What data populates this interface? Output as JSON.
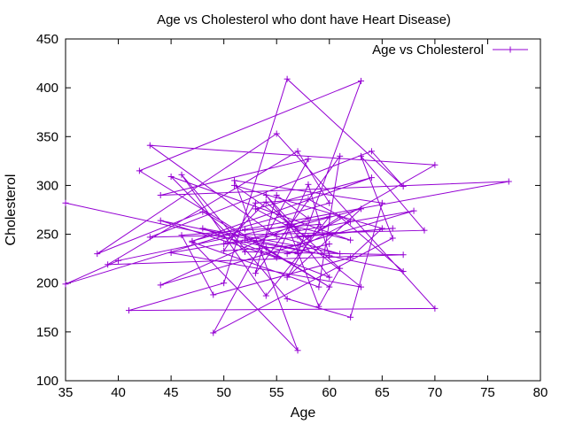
{
  "chart_data": {
    "type": "line",
    "title": "Age vs Cholesterol who dont have Heart Disease)",
    "xlabel": "Age",
    "ylabel": "Cholesterol",
    "xlim": [
      35,
      80
    ],
    "ylim": [
      100,
      450
    ],
    "x_ticks": [
      35,
      40,
      45,
      50,
      55,
      60,
      65,
      70,
      75,
      80
    ],
    "y_ticks": [
      100,
      150,
      200,
      250,
      300,
      350,
      400,
      450
    ],
    "grid": false,
    "legend_position": "top-right",
    "series": [
      {
        "name": "Age vs Cholesterol",
        "color": "#9400d3",
        "marker": "plus",
        "x": [
          35,
          57,
          63,
          42,
          60,
          48,
          38,
          55,
          70,
          41,
          50,
          56,
          67,
          64,
          43,
          69,
          63,
          66,
          49,
          58,
          44,
          77,
          52,
          35,
          40,
          60,
          54,
          46,
          56,
          62,
          65,
          51,
          57,
          47,
          59,
          61,
          53,
          55,
          58,
          44,
          68,
          45,
          63,
          57,
          66,
          50,
          54,
          61,
          59,
          56,
          62,
          45,
          52,
          67,
          39,
          57,
          60,
          47,
          64,
          53,
          58,
          70,
          43,
          55,
          61,
          48,
          60,
          54,
          57,
          51,
          65,
          62,
          49,
          46,
          59,
          56,
          63,
          52,
          60,
          58,
          55,
          44,
          67,
          61,
          57,
          54,
          50,
          53,
          58,
          62,
          56,
          60
        ],
        "y": [
          282,
          230,
          407,
          315,
          196,
          273,
          230,
          353,
          174,
          172,
          200,
          409,
          299,
          335,
          247,
          254,
          330,
          246,
          149,
          327,
          290,
          304,
          255,
          199,
          223,
          268,
          187,
          311,
          184,
          165,
          282,
          305,
          131,
          242,
          196,
          330,
          210,
          290,
          266,
          198,
          274,
          231,
          196,
          248,
          256,
          240,
          283,
          215,
          176,
          260,
          244,
          309,
          232,
          229,
          219,
          335,
          282,
          243,
          308,
          276,
          247,
          321,
          341,
          248,
          230,
          256,
          206,
          290,
          255,
          300,
          256,
          226,
          188,
          249,
          260,
          206,
          276,
          244,
          228,
          301,
          226,
          264,
          212,
          268,
          239,
          236,
          233,
          282,
          286,
          263,
          230,
          240
        ]
      }
    ]
  }
}
